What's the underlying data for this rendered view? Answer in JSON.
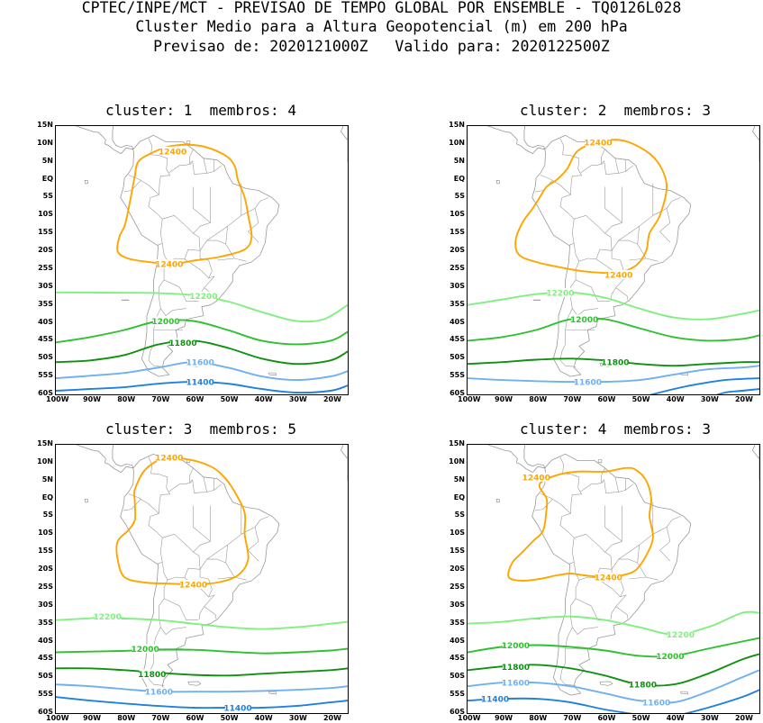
{
  "header": {
    "line1": "CPTEC/INPE/MCT - PREVISAO DE TEMPO GLOBAL POR ENSEMBLE - TQ0126L028",
    "line2": "Cluster Medio para a Altura Geopotencial (m) em 200 hPa",
    "line3": "Previsao de: 2020121000Z   Valido para: 2020122500Z"
  },
  "axes": {
    "lat_labels": [
      "15N",
      "10N",
      "5N",
      "EQ",
      "5S",
      "10S",
      "15S",
      "20S",
      "25S",
      "30S",
      "35S",
      "40S",
      "45S",
      "50S",
      "55S",
      "60S"
    ],
    "lon_labels": [
      "100W",
      "90W",
      "80W",
      "70W",
      "60W",
      "50W",
      "40W",
      "30W",
      "20W"
    ]
  },
  "colors": {
    "c12400": "#ffa500",
    "c12200": "#80f080",
    "c12000": "#30c030",
    "c11800": "#109010",
    "c11600": "#70b0f0",
    "c11400": "#2080e0",
    "coast": "#999999"
  },
  "panels": [
    {
      "title": "cluster: 1  membros: 4",
      "labels": [
        {
          "text": "12400",
          "lon": -66,
          "lat": 8,
          "color": "c12400"
        },
        {
          "text": "12400",
          "lon": -67,
          "lat": -23.5,
          "color": "c12400"
        },
        {
          "text": "12200",
          "lon": -57,
          "lat": -32.5,
          "color": "c12200"
        },
        {
          "text": "12000",
          "lon": -68,
          "lat": -39.5,
          "color": "c12000"
        },
        {
          "text": "11800",
          "lon": -63,
          "lat": -45.5,
          "color": "c11800"
        },
        {
          "text": "11600",
          "lon": -58,
          "lat": -51,
          "color": "c11600"
        },
        {
          "text": "11400",
          "lon": -58,
          "lat": -56.5,
          "color": "c11400"
        }
      ]
    },
    {
      "title": "cluster: 2  membros: 3",
      "labels": [
        {
          "text": "12400",
          "lon": -62,
          "lat": 10.5,
          "color": "c12400"
        },
        {
          "text": "12400",
          "lon": -56,
          "lat": -26.5,
          "color": "c12400"
        },
        {
          "text": "12200",
          "lon": -73,
          "lat": -31.5,
          "color": "c12200"
        },
        {
          "text": "12000",
          "lon": -66,
          "lat": -39,
          "color": "c12000"
        },
        {
          "text": "11800",
          "lon": -57,
          "lat": -51,
          "color": "c11800"
        },
        {
          "text": "11600",
          "lon": -65,
          "lat": -56.5,
          "color": "c11600"
        }
      ]
    },
    {
      "title": "cluster: 3  membros: 5",
      "labels": [
        {
          "text": "12400",
          "lon": -67,
          "lat": 11.5,
          "color": "c12400"
        },
        {
          "text": "12400",
          "lon": -60,
          "lat": -24,
          "color": "c12400"
        },
        {
          "text": "12200",
          "lon": -85,
          "lat": -33,
          "color": "c12200"
        },
        {
          "text": "12000",
          "lon": -74,
          "lat": -42,
          "color": "c12000"
        },
        {
          "text": "11800",
          "lon": -72,
          "lat": -49,
          "color": "c11800"
        },
        {
          "text": "11600",
          "lon": -70,
          "lat": -54,
          "color": "c11600"
        },
        {
          "text": "11400",
          "lon": -47,
          "lat": -58.5,
          "color": "c11400"
        }
      ]
    },
    {
      "title": "cluster: 4  membros: 3",
      "labels": [
        {
          "text": "12400",
          "lon": -80,
          "lat": 6,
          "color": "c12400"
        },
        {
          "text": "12400",
          "lon": -59,
          "lat": -22,
          "color": "c12400"
        },
        {
          "text": "12200",
          "lon": -38,
          "lat": -38,
          "color": "c12200"
        },
        {
          "text": "12000",
          "lon": -86,
          "lat": -41,
          "color": "c12000"
        },
        {
          "text": "12000",
          "lon": -41,
          "lat": -44,
          "color": "c12000"
        },
        {
          "text": "11800",
          "lon": -86,
          "lat": -47,
          "color": "c11800"
        },
        {
          "text": "11800",
          "lon": -49,
          "lat": -52,
          "color": "c11800"
        },
        {
          "text": "11600",
          "lon": -86,
          "lat": -51.5,
          "color": "c11600"
        },
        {
          "text": "11600",
          "lon": -45,
          "lat": -57,
          "color": "c11600"
        },
        {
          "text": "11400",
          "lon": -92,
          "lat": -56,
          "color": "c11400"
        }
      ]
    }
  ]
}
